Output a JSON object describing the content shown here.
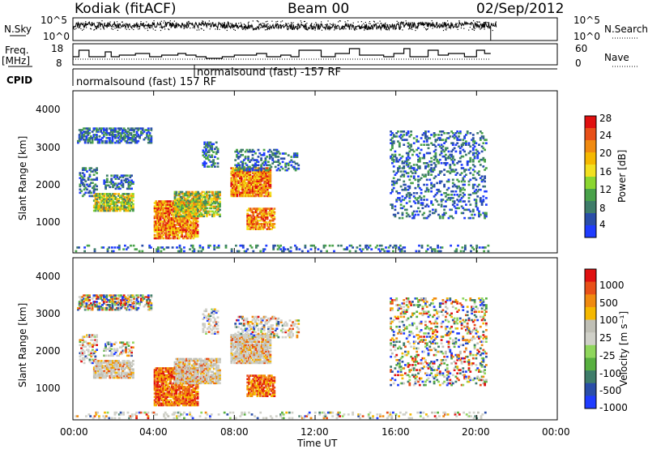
{
  "header": {
    "station": "Kodiak (fitACF)",
    "beam": "Beam 00",
    "date": "02/Sep/2012"
  },
  "panel_labels": {
    "nsky": "N.Sky",
    "nsearch": "N.Search",
    "freq": "Freq.",
    "freq_unit": "[MHz]",
    "nave": "Nave",
    "cpid": "CPID"
  },
  "cpid_segments": [
    {
      "label": "normalsound (fast) 157 RF"
    },
    {
      "label": "normalsound (fast) -157 RF"
    }
  ],
  "xaxis": {
    "label": "Time UT",
    "ticks": [
      "00:00",
      "04:00",
      "08:00",
      "12:00",
      "16:00",
      "20:00",
      "00:00"
    ]
  },
  "colors": {
    "power": [
      "#1f3cff",
      "#2a4ea8",
      "#3f7d6a",
      "#49a24a",
      "#8bd630",
      "#f2e020",
      "#f5b800",
      "#f08a10",
      "#e85018",
      "#e01010"
    ],
    "velocity": [
      "#1f3cff",
      "#2a4ea8",
      "#3f7d6a",
      "#58b040",
      "#8fd65c",
      "#cfd0c8",
      "#bfbfb5",
      "#f5b800",
      "#f08a10",
      "#e85018",
      "#e01010"
    ]
  },
  "chart_data": [
    {
      "type": "line",
      "name": "noise",
      "yticks_left": [
        "10^5",
        "10^0"
      ],
      "yticks_right": [
        "10^5",
        "10^0"
      ],
      "series": [
        {
          "name": "N.Sky"
        },
        {
          "name": "N.Search"
        }
      ],
      "x_range_hours": [
        0,
        24
      ]
    },
    {
      "type": "line",
      "name": "frequency-nave",
      "yticks_left": [
        "18",
        "8"
      ],
      "yticks_right": [
        "60",
        "0"
      ],
      "series": [
        {
          "name": "Freq. [MHz]"
        },
        {
          "name": "Nave"
        }
      ],
      "x_range_hours": [
        0,
        24
      ]
    },
    {
      "type": "heatmap",
      "name": "power",
      "ylabel": "Slant Range [km]",
      "yticks": [
        "4000",
        "3000",
        "2000",
        "1000"
      ],
      "ylim": [
        180,
        4590
      ],
      "colorbar_label": "Power [dB]",
      "colorbar_ticks": [
        "28",
        "24",
        "20",
        "16",
        "12",
        "8",
        "4"
      ],
      "xlim_hours": [
        0,
        24
      ]
    },
    {
      "type": "heatmap",
      "name": "velocity",
      "ylabel": "Slant Range [km]",
      "yticks": [
        "4000",
        "3000",
        "2000",
        "1000"
      ],
      "ylim": [
        180,
        4590
      ],
      "colorbar_label": "Velocity [m s⁻¹]",
      "colorbar_ticks": [
        "1000",
        "500",
        "100",
        "25",
        "-25",
        "-100",
        "-500",
        "-1000"
      ],
      "xlim_hours": [
        0,
        24
      ]
    }
  ]
}
